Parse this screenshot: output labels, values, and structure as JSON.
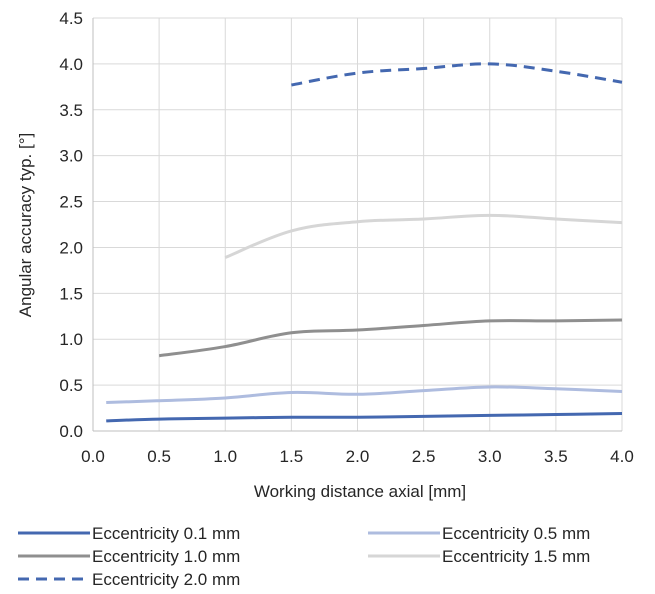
{
  "chart_data": {
    "type": "line",
    "title": "",
    "xlabel": "Working distance axial [mm]",
    "ylabel": "Angular accuracy typ. [°]",
    "xlim": [
      0.0,
      4.0
    ],
    "ylim": [
      0.0,
      4.5
    ],
    "x_ticks": [
      "0.0",
      "0.5",
      "1.0",
      "1.5",
      "2.0",
      "2.5",
      "3.0",
      "3.5",
      "4.0"
    ],
    "y_ticks": [
      "0.0",
      "0.5",
      "1.0",
      "1.5",
      "2.0",
      "2.5",
      "3.0",
      "3.5",
      "4.0",
      "4.5"
    ],
    "grid": true,
    "legend_position": "bottom",
    "series": [
      {
        "name": "Eccentricity 0.1 mm",
        "color": "#4468B0",
        "dashed": false,
        "x": [
          0.1,
          0.5,
          1.0,
          1.5,
          2.0,
          2.5,
          3.0,
          3.5,
          4.0
        ],
        "y": [
          0.11,
          0.13,
          0.14,
          0.15,
          0.15,
          0.16,
          0.17,
          0.18,
          0.19
        ]
      },
      {
        "name": "Eccentricity 0.5 mm",
        "color": "#AEBCDF",
        "dashed": false,
        "x": [
          0.1,
          0.5,
          1.0,
          1.5,
          2.0,
          2.5,
          3.0,
          3.5,
          4.0
        ],
        "y": [
          0.31,
          0.33,
          0.36,
          0.42,
          0.4,
          0.44,
          0.48,
          0.46,
          0.43
        ]
      },
      {
        "name": "Eccentricity 1.0 mm",
        "color": "#8F8F8F",
        "dashed": false,
        "x": [
          0.5,
          1.0,
          1.5,
          2.0,
          2.5,
          3.0,
          3.5,
          4.0
        ],
        "y": [
          0.82,
          0.92,
          1.07,
          1.1,
          1.15,
          1.2,
          1.2,
          1.21
        ]
      },
      {
        "name": "Eccentricity 1.5 mm",
        "color": "#D6D6D6",
        "dashed": false,
        "x": [
          1.0,
          1.5,
          2.0,
          2.5,
          3.0,
          3.5,
          4.0
        ],
        "y": [
          1.89,
          2.18,
          2.28,
          2.31,
          2.35,
          2.31,
          2.27
        ]
      },
      {
        "name": "Eccentricity 2.0 mm",
        "color": "#4468B0",
        "dashed": true,
        "x": [
          1.5,
          2.0,
          2.5,
          3.0,
          3.5,
          4.0
        ],
        "y": [
          3.77,
          3.9,
          3.95,
          4.0,
          3.92,
          3.8
        ]
      }
    ]
  }
}
